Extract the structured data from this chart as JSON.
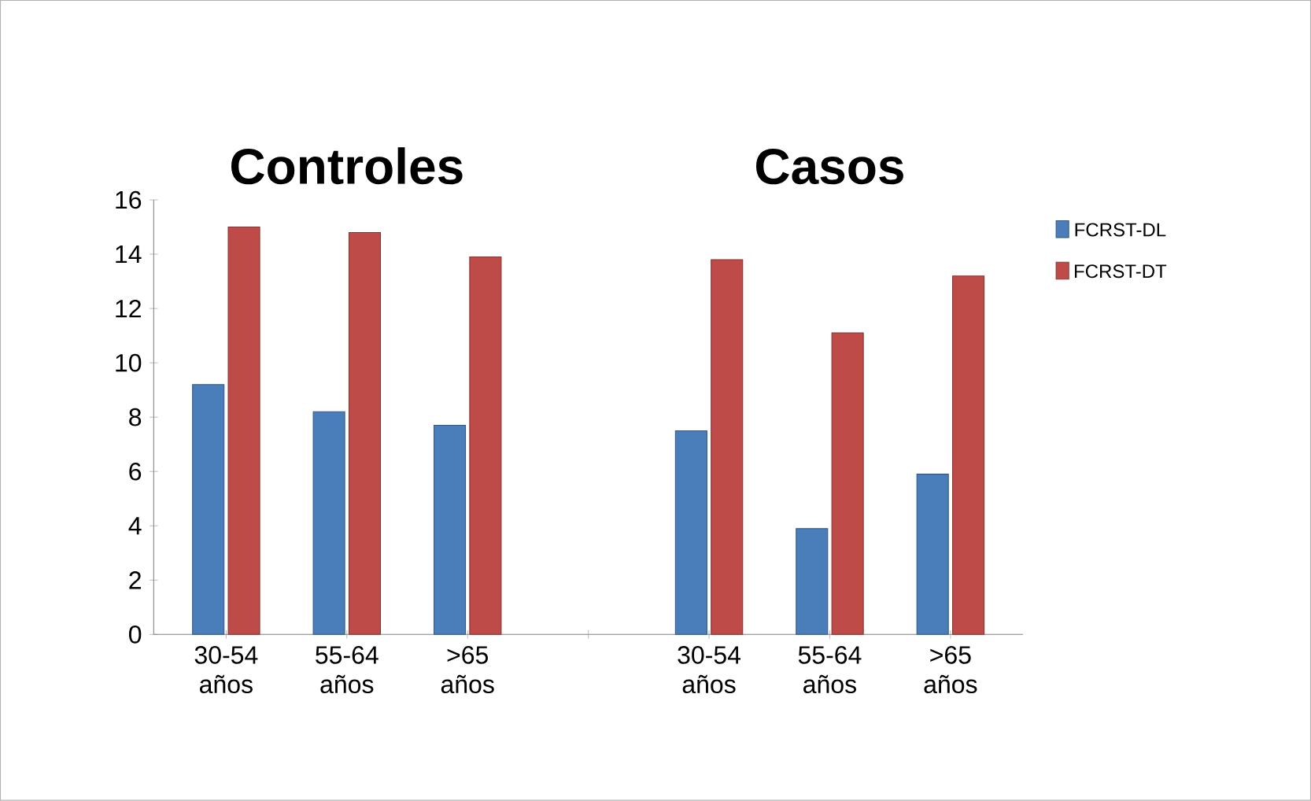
{
  "chart_data": {
    "type": "bar",
    "annotations": [
      "Controles",
      "Casos"
    ],
    "categories": [
      "30-54 años",
      "55-64 años",
      ">65 años",
      null,
      "30-54 años",
      "55-64 años",
      ">65 años"
    ],
    "series": [
      {
        "name": "FCRST-DL",
        "color": "#4a7ebb",
        "values": [
          9.2,
          8.2,
          7.7,
          null,
          7.5,
          3.9,
          5.9
        ]
      },
      {
        "name": "FCRST-DT",
        "color": "#be4b48",
        "values": [
          15.0,
          14.8,
          13.9,
          null,
          13.8,
          11.1,
          13.2
        ]
      }
    ],
    "ylim": [
      0,
      16
    ],
    "yticks": [
      0,
      2,
      4,
      6,
      8,
      10,
      12,
      14,
      16
    ],
    "grid": false,
    "legend": "right"
  }
}
